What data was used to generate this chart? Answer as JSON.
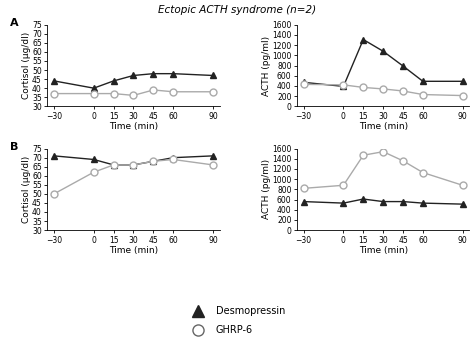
{
  "title": "Ectopic ACTH syndrome (n=2)",
  "time": [
    -30,
    0,
    15,
    30,
    45,
    60,
    90
  ],
  "panel_A": {
    "label": "A",
    "cortisol": {
      "desmopressin": [
        44,
        40,
        44,
        47,
        48,
        48,
        47
      ],
      "ghrp6": [
        37,
        37,
        37,
        36,
        39,
        38,
        38
      ]
    },
    "acth": {
      "desmopressin": [
        470,
        390,
        1310,
        1080,
        790,
        490,
        490
      ],
      "ghrp6": [
        430,
        420,
        370,
        340,
        300,
        230,
        210
      ]
    }
  },
  "panel_B": {
    "label": "B",
    "cortisol": {
      "desmopressin": [
        71,
        69,
        66,
        66,
        68,
        70,
        71
      ],
      "ghrp6": [
        50,
        62,
        66,
        66,
        68,
        69,
        66
      ]
    },
    "acth": {
      "desmopressin": [
        560,
        530,
        610,
        560,
        560,
        530,
        510
      ],
      "ghrp6": [
        820,
        880,
        1470,
        1540,
        1360,
        1130,
        880
      ]
    }
  },
  "cortisol_ylim": [
    30,
    75
  ],
  "cortisol_yticks": [
    30,
    35,
    40,
    45,
    50,
    55,
    60,
    65,
    70,
    75
  ],
  "acth_ylim": [
    0,
    1600
  ],
  "acth_yticks": [
    0,
    200,
    400,
    600,
    800,
    1000,
    1200,
    1400,
    1600
  ],
  "xticks": [
    -30,
    0,
    15,
    30,
    45,
    60,
    90
  ],
  "xlabel": "Time (min)",
  "ylabel_cortisol": "Cortisol (µg/dl)",
  "ylabel_acth": "ACTH (pg/ml)",
  "color_desmopressin": "#222222",
  "color_ghrp6": "#aaaaaa",
  "legend_desmopressin": "Desmopressin",
  "legend_ghrp6": "GHRP-6",
  "marker_desmopressin": "^",
  "marker_ghrp6": "o",
  "markersize": 5,
  "linewidth": 1.0,
  "title_fontsize": 7.5,
  "label_fontsize": 6.5,
  "tick_fontsize": 5.5,
  "legend_fontsize": 7,
  "panel_label_fontsize": 8
}
